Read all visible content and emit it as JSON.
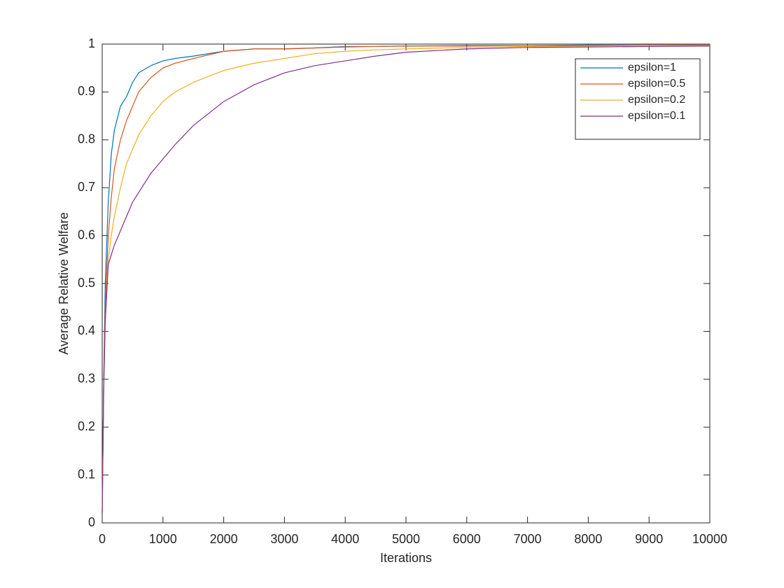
{
  "chart_data": {
    "type": "line",
    "xlabel": "Iterations",
    "ylabel": "Average Relative Welfare",
    "x": [
      0,
      25,
      50,
      100,
      150,
      200,
      300,
      400,
      500,
      600,
      800,
      1000,
      1200,
      1500,
      2000,
      2500,
      3000,
      3500,
      4000,
      4500,
      5000,
      6000,
      7000,
      8000,
      9000,
      10000
    ],
    "series": [
      {
        "name": "epsilon=1",
        "color": "#0072BD",
        "values": [
          0.02,
          0.3,
          0.5,
          0.67,
          0.77,
          0.82,
          0.87,
          0.89,
          0.92,
          0.94,
          0.955,
          0.965,
          0.97,
          0.975,
          0.985,
          0.99,
          0.99,
          0.992,
          0.995,
          0.995,
          0.996,
          0.997,
          0.997,
          0.998,
          0.998,
          0.998
        ]
      },
      {
        "name": "epsilon=0.5",
        "color": "#D95319",
        "values": [
          0.02,
          0.3,
          0.45,
          0.6,
          0.68,
          0.74,
          0.8,
          0.84,
          0.87,
          0.9,
          0.93,
          0.95,
          0.96,
          0.97,
          0.985,
          0.99,
          0.99,
          0.992,
          0.994,
          0.995,
          0.996,
          0.996,
          0.997,
          0.997,
          0.998,
          0.998
        ]
      },
      {
        "name": "epsilon=0.2",
        "color": "#EDB120",
        "values": [
          0.02,
          0.28,
          0.42,
          0.55,
          0.6,
          0.64,
          0.7,
          0.75,
          0.78,
          0.81,
          0.85,
          0.88,
          0.9,
          0.92,
          0.945,
          0.96,
          0.97,
          0.98,
          0.985,
          0.988,
          0.99,
          0.993,
          0.995,
          0.996,
          0.997,
          0.997
        ]
      },
      {
        "name": "epsilon=0.1",
        "color": "#7E2F8E",
        "values": [
          0.02,
          0.28,
          0.42,
          0.54,
          0.56,
          0.58,
          0.61,
          0.64,
          0.67,
          0.69,
          0.73,
          0.76,
          0.79,
          0.83,
          0.88,
          0.915,
          0.94,
          0.955,
          0.965,
          0.975,
          0.983,
          0.99,
          0.993,
          0.994,
          0.995,
          0.996
        ]
      }
    ],
    "xlim": [
      0,
      10000
    ],
    "xticks": [
      0,
      1000,
      2000,
      3000,
      4000,
      5000,
      6000,
      7000,
      8000,
      9000,
      10000
    ],
    "ylim": [
      0,
      1
    ],
    "yticks": [
      0,
      0.1,
      0.2,
      0.3,
      0.4,
      0.5,
      0.6,
      0.7,
      0.8,
      0.9,
      1
    ],
    "grid": false,
    "legend": "upper right"
  }
}
